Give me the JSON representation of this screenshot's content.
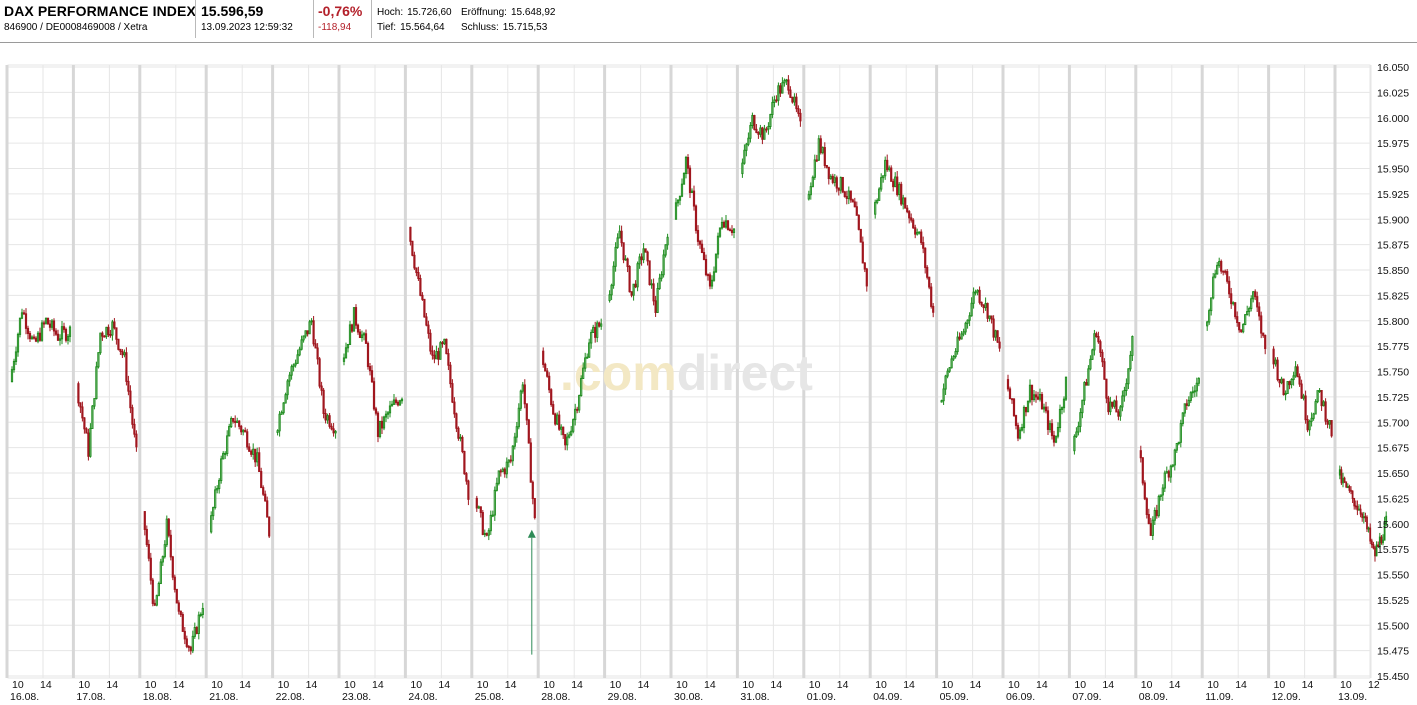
{
  "header": {
    "name": "DAX PERFORMANCE INDEX",
    "ids": "846900 / DE0008469008 / Xetra",
    "last": "15.596,59",
    "time": "13.09.2023 12:59:32",
    "change_pct": "-0,76%",
    "change_abs": "-118,94",
    "high_label": "Hoch:",
    "high_value": "15.726,60",
    "open_label": "Eröffnung:",
    "open_value": "15.648,92",
    "low_label": "Tief:",
    "low_value": "15.564,64",
    "close_label": "Schluss:",
    "close_value": "15.715,53"
  },
  "watermark": {
    "part1": ".com",
    "part2": "direct"
  },
  "colors": {
    "up": "#1e8c1e",
    "down": "#a0161e",
    "grid": "#e6e6e6",
    "session": "#d7d7d7",
    "watermark1": "#f3e8c4",
    "watermark2": "#e6e6e6",
    "negative": "#b3202a"
  },
  "chart_data": {
    "type": "line",
    "style": "intraday candlestick (green up, red down)",
    "ylim": [
      15450,
      16050
    ],
    "y_ticks": [
      "16.050",
      "16.025",
      "16.000",
      "15.975",
      "15.950",
      "15.925",
      "15.900",
      "15.875",
      "15.850",
      "15.825",
      "15.800",
      "15.775",
      "15.750",
      "15.725",
      "15.700",
      "15.675",
      "15.650",
      "15.625",
      "15.600",
      "15.575",
      "15.550",
      "15.525",
      "15.500",
      "15.475",
      "15.450"
    ],
    "y_tick_values": [
      16050,
      16025,
      16000,
      15975,
      15950,
      15925,
      15900,
      15875,
      15850,
      15825,
      15800,
      15775,
      15750,
      15725,
      15700,
      15675,
      15650,
      15625,
      15600,
      15575,
      15550,
      15525,
      15500,
      15475,
      15450
    ],
    "days": [
      {
        "date": "16.08.",
        "points": [
          15740,
          15812,
          15775,
          15800,
          15785,
          15790
        ]
      },
      {
        "date": "17.08.",
        "points": [
          15738,
          15672,
          15788,
          15795,
          15762,
          15668
        ]
      },
      {
        "date": "18.08.",
        "points": [
          15612,
          15512,
          15598,
          15510,
          15475,
          15522
        ]
      },
      {
        "date": "21.08.",
        "points": [
          15592,
          15660,
          15705,
          15688,
          15662,
          15592
        ]
      },
      {
        "date": "22.08.",
        "points": [
          15690,
          15742,
          15772,
          15800,
          15710,
          15695
        ]
      },
      {
        "date": "23.08.",
        "points": [
          15760,
          15805,
          15775,
          15690,
          15712,
          15728
        ]
      },
      {
        "date": "24.08.",
        "points": [
          15892,
          15825,
          15762,
          15775,
          15702,
          15632
        ]
      },
      {
        "date": "25.08.",
        "points": [
          15625,
          15582,
          15648,
          15662,
          15742,
          15602
        ]
      },
      {
        "date": "28.08.",
        "points": [
          15770,
          15712,
          15675,
          15720,
          15782,
          15798
        ]
      },
      {
        "date": "29.08.",
        "points": [
          15820,
          15888,
          15825,
          15872,
          15812,
          15890
        ]
      },
      {
        "date": "30.08.",
        "points": [
          15900,
          15958,
          15882,
          15830,
          15902,
          15890
        ]
      },
      {
        "date": "31.08.",
        "points": [
          15945,
          15998,
          15982,
          16025,
          16035,
          15990
        ]
      },
      {
        "date": "01.09.",
        "points": [
          15920,
          15975,
          15942,
          15932,
          15908,
          15838
        ]
      },
      {
        "date": "04.09.",
        "points": [
          15905,
          15955,
          15932,
          15905,
          15878,
          15808
        ]
      },
      {
        "date": "05.09.",
        "points": [
          15720,
          15762,
          15790,
          15832,
          15810,
          15770
        ]
      },
      {
        "date": "06.09.",
        "points": [
          15742,
          15688,
          15732,
          15718,
          15680,
          15740
        ]
      },
      {
        "date": "07.09.",
        "points": [
          15672,
          15732,
          15792,
          15718,
          15708,
          15780
        ]
      },
      {
        "date": "08.09.",
        "points": [
          15672,
          15588,
          15640,
          15668,
          15720,
          15740
        ]
      },
      {
        "date": "11.09.",
        "points": [
          15795,
          15862,
          15830,
          15790,
          15828,
          15772
        ]
      },
      {
        "date": "12.09.",
        "points": [
          15772,
          15728,
          15758,
          15700,
          15728,
          15690
        ]
      },
      {
        "date": "13.09.",
        "points": [
          15648,
          15628,
          15612,
          15568,
          15600
        ]
      }
    ],
    "x_labels": [
      {
        "day": "16.08.",
        "times": [
          "10",
          "14"
        ]
      },
      {
        "day": "17.08.",
        "times": [
          "10",
          "14"
        ]
      },
      {
        "day": "18.08.",
        "times": [
          "10",
          "14"
        ]
      },
      {
        "day": "21.08.",
        "times": [
          "10",
          "14"
        ]
      },
      {
        "day": "22.08.",
        "times": [
          "10",
          "14"
        ]
      },
      {
        "day": "23.08.",
        "times": [
          "10",
          "14"
        ]
      },
      {
        "day": "24.08.",
        "times": [
          "10",
          "14"
        ]
      },
      {
        "day": "25.08.",
        "times": [
          "10",
          "14"
        ]
      },
      {
        "day": "28.08.",
        "times": [
          "10",
          "14"
        ]
      },
      {
        "day": "29.08.",
        "times": [
          "10",
          "14"
        ]
      },
      {
        "day": "30.08.",
        "times": [
          "10",
          "14"
        ]
      },
      {
        "day": "31.08.",
        "times": [
          "10",
          "14"
        ]
      },
      {
        "day": "01.09.",
        "times": [
          "10",
          "14"
        ]
      },
      {
        "day": "04.09.",
        "times": [
          "10",
          "14"
        ]
      },
      {
        "day": "05.09.",
        "times": [
          "10",
          "14"
        ]
      },
      {
        "day": "06.09.",
        "times": [
          "10",
          "14"
        ]
      },
      {
        "day": "07.09.",
        "times": [
          "10",
          "14"
        ]
      },
      {
        "day": "08.09.",
        "times": [
          "10",
          "14"
        ]
      },
      {
        "day": "11.09.",
        "times": [
          "10",
          "14"
        ]
      },
      {
        "day": "12.09.",
        "times": [
          "10",
          "14"
        ]
      },
      {
        "day": "13.09.",
        "times": [
          "10",
          "12"
        ]
      }
    ],
    "marker": {
      "day": "25.08.",
      "value": 15600,
      "direction": "up"
    },
    "grid": true
  }
}
